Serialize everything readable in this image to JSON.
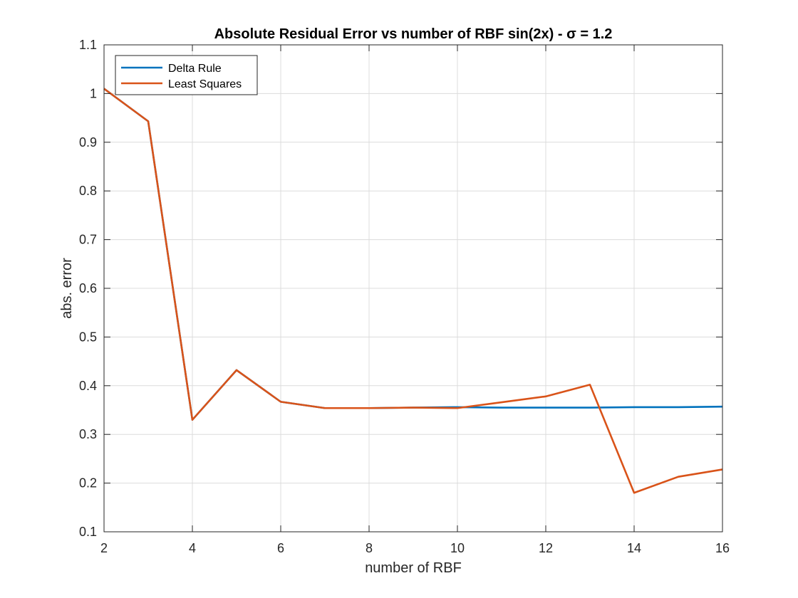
{
  "chart_data": {
    "type": "line",
    "title": "Absolute Residual Error vs number of RBF sin(2x) - σ = 1.2",
    "xlabel": "number of RBF",
    "ylabel": "abs. error",
    "xlim": [
      2,
      16
    ],
    "ylim": [
      0.1,
      1.1
    ],
    "xticks": [
      2,
      4,
      6,
      8,
      10,
      12,
      14,
      16
    ],
    "yticks": [
      0.1,
      0.2,
      0.3,
      0.4,
      0.5,
      0.6,
      0.7,
      0.8,
      0.9,
      1,
      1.1
    ],
    "grid": true,
    "legend_position": "top-left",
    "x": [
      2,
      3,
      4,
      5,
      6,
      7,
      8,
      9,
      10,
      11,
      12,
      13,
      14,
      15,
      16
    ],
    "series": [
      {
        "name": "Delta Rule",
        "color": "#0072BD",
        "values": [
          1.01,
          0.943,
          0.33,
          0.432,
          0.367,
          0.354,
          0.354,
          0.355,
          0.356,
          0.355,
          0.355,
          0.355,
          0.356,
          0.356,
          0.357
        ]
      },
      {
        "name": "Least Squares",
        "color": "#D95319",
        "values": [
          1.01,
          0.943,
          0.33,
          0.432,
          0.367,
          0.354,
          0.354,
          0.355,
          0.354,
          0.366,
          0.378,
          0.402,
          0.18,
          0.213,
          0.228
        ]
      }
    ]
  }
}
